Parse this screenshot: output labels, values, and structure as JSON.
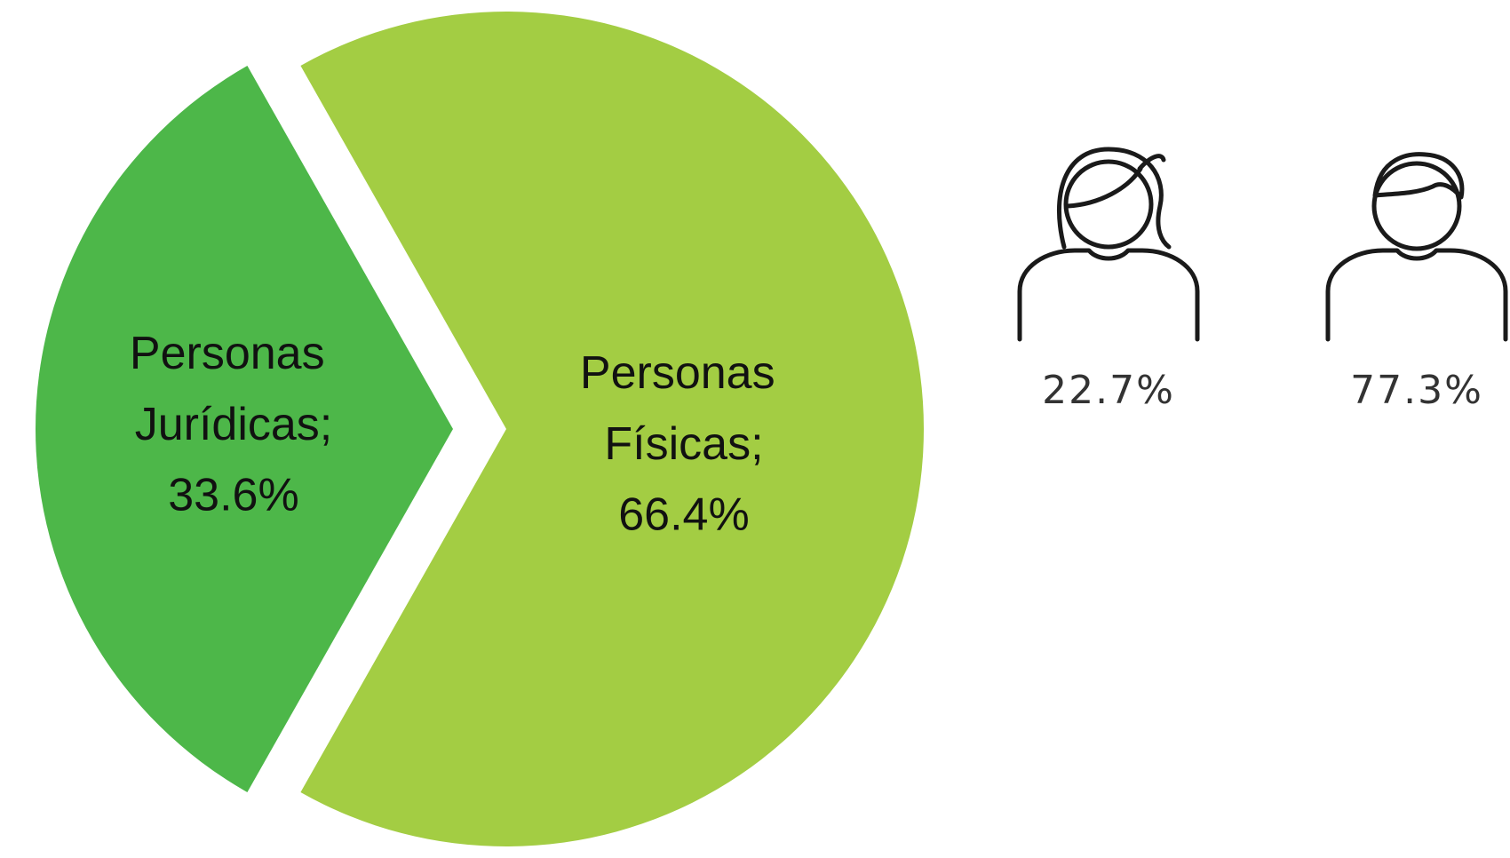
{
  "chart_data": [
    {
      "type": "pie",
      "categories": [
        "Personas Jurídicas;",
        "Personas Físicas;"
      ],
      "values": [
        33.6,
        66.4
      ],
      "value_labels": [
        "33.6%",
        "66.4%"
      ],
      "colors": [
        "#4db749",
        "#a3cd43"
      ]
    },
    {
      "type": "pictogram",
      "values": [
        22.7,
        77.3
      ],
      "value_labels": [
        "22.7%",
        "77.3%"
      ],
      "color": "#1a1a1a"
    }
  ]
}
